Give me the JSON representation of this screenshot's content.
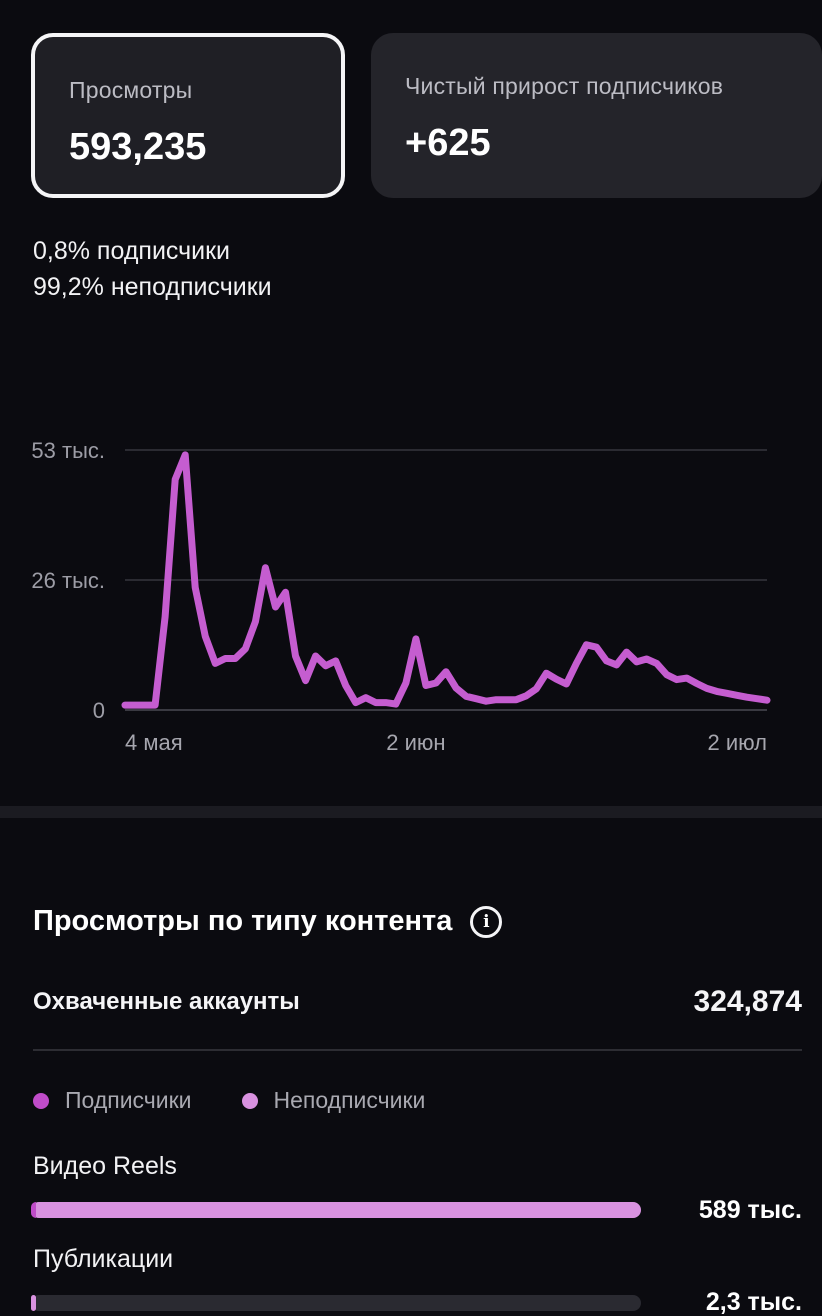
{
  "cards": [
    {
      "label": "Просмотры",
      "value": "593,235"
    },
    {
      "label": "Чистый прирост подписчиков",
      "value": "+625"
    }
  ],
  "audience_split": {
    "followers": "0,8% подписчики",
    "non_followers": "99,2% неподписчики"
  },
  "chart_data": {
    "type": "line",
    "y_ticks": [
      "53 тыс.",
      "26 тыс.",
      "0"
    ],
    "ylim": [
      0,
      53000
    ],
    "x_ticks": [
      "4 мая",
      "2 июн",
      "2 июл"
    ],
    "x_tick_dates": [
      "2024-05-04",
      "2024-06-02",
      "2024-07-02"
    ],
    "x_start": "2024-05-04",
    "x_end": "2024-07-07",
    "color": "#c55dd0",
    "series": [
      {
        "name": "",
        "x": [
          "2024-05-04",
          "2024-05-05",
          "2024-05-06",
          "2024-05-07",
          "2024-05-08",
          "2024-05-09",
          "2024-05-10",
          "2024-05-11",
          "2024-05-12",
          "2024-05-13",
          "2024-05-14",
          "2024-05-15",
          "2024-05-16",
          "2024-05-17",
          "2024-05-18",
          "2024-05-19",
          "2024-05-20",
          "2024-05-21",
          "2024-05-22",
          "2024-05-23",
          "2024-05-24",
          "2024-05-25",
          "2024-05-26",
          "2024-05-27",
          "2024-05-28",
          "2024-05-29",
          "2024-05-30",
          "2024-05-31",
          "2024-06-01",
          "2024-06-02",
          "2024-06-03",
          "2024-06-04",
          "2024-06-05",
          "2024-06-06",
          "2024-06-07",
          "2024-06-08",
          "2024-06-09",
          "2024-06-10",
          "2024-06-11",
          "2024-06-12",
          "2024-06-13",
          "2024-06-14",
          "2024-06-15",
          "2024-06-16",
          "2024-06-17",
          "2024-06-18",
          "2024-06-19",
          "2024-06-20",
          "2024-06-21",
          "2024-06-22",
          "2024-06-23",
          "2024-06-24",
          "2024-06-25",
          "2024-06-26",
          "2024-06-27",
          "2024-06-28",
          "2024-06-29",
          "2024-06-30",
          "2024-07-01",
          "2024-07-02",
          "2024-07-03",
          "2024-07-04",
          "2024-07-05",
          "2024-07-06",
          "2024-07-07"
        ],
        "y": [
          1000,
          1000,
          1000,
          1000,
          19000,
          47000,
          52000,
          25000,
          15000,
          9500,
          10500,
          10500,
          12500,
          18000,
          29000,
          21000,
          24000,
          11000,
          6000,
          11000,
          9000,
          10000,
          5000,
          1500,
          2500,
          1500,
          1500,
          1200,
          5500,
          14500,
          5000,
          5500,
          7800,
          4500,
          2800,
          2300,
          1800,
          2100,
          2100,
          2100,
          2900,
          4300,
          7500,
          6300,
          5300,
          9500,
          13300,
          12800,
          10000,
          9200,
          11800,
          9800,
          10400,
          9500,
          7200,
          6200,
          6500,
          5400,
          4400,
          3800,
          3400,
          3000,
          2600,
          2300,
          2000
        ]
      }
    ]
  },
  "content_section": {
    "title": "Просмотры по типу контента",
    "reach_label": "Охваченные аккаунты",
    "reach_value": "324,874",
    "legend": [
      {
        "label": "Подписчики",
        "color": "#c04cc9"
      },
      {
        "label": "Неподписчики",
        "color": "#d992e0"
      }
    ],
    "rows": [
      {
        "label": "Видео Reels",
        "value": "589 тыс.",
        "fraction": 1.0
      },
      {
        "label": "Публикации",
        "value": "2,3 тыс.",
        "fraction": 0.004
      }
    ]
  }
}
